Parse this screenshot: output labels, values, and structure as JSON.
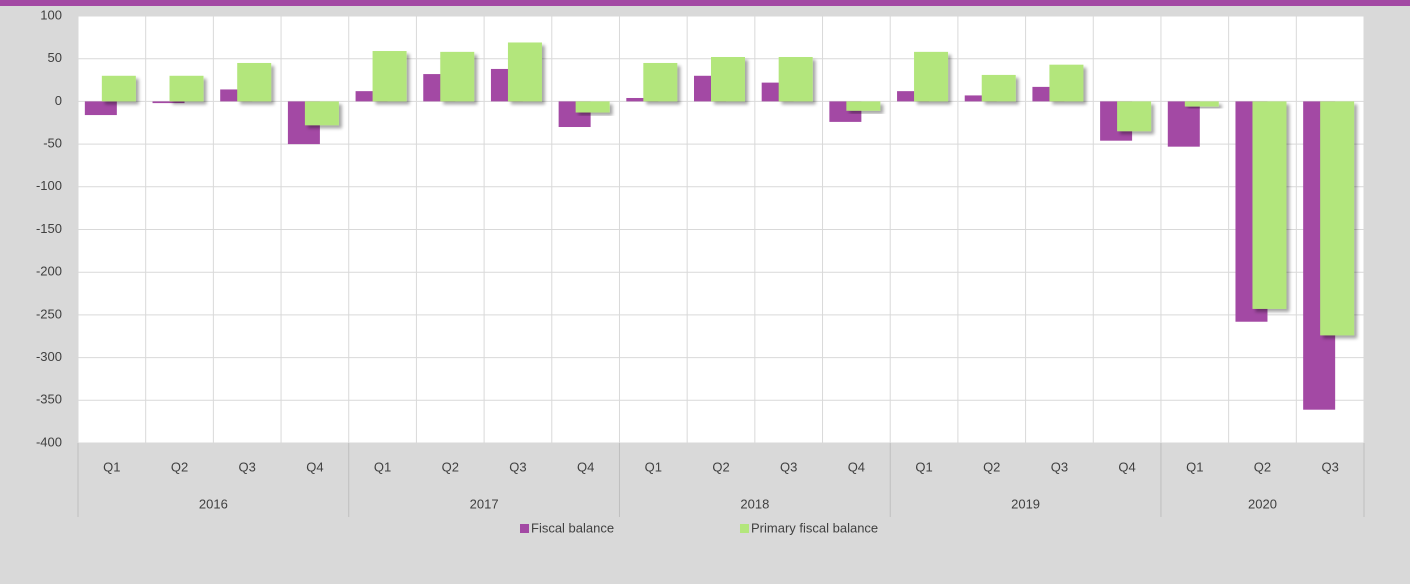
{
  "chart_data": {
    "type": "bar",
    "groups": [
      {
        "name": "2016",
        "categories": [
          "Q1",
          "Q2",
          "Q3",
          "Q4"
        ]
      },
      {
        "name": "2017",
        "categories": [
          "Q1",
          "Q2",
          "Q3",
          "Q4"
        ]
      },
      {
        "name": "2018",
        "categories": [
          "Q1",
          "Q2",
          "Q3",
          "Q4"
        ]
      },
      {
        "name": "2019",
        "categories": [
          "Q1",
          "Q2",
          "Q3",
          "Q4"
        ]
      },
      {
        "name": "2020",
        "categories": [
          "Q1",
          "Q2",
          "Q3"
        ]
      }
    ],
    "series": [
      {
        "name": "Fiscal balance",
        "color": "#a349a4",
        "values": [
          -16,
          -2,
          14,
          -50,
          12,
          32,
          38,
          -30,
          4,
          30,
          22,
          -24,
          12,
          7,
          17,
          -46,
          -53,
          -258,
          -361
        ]
      },
      {
        "name": "Primary fiscal balance",
        "color": "#b3e67c",
        "values": [
          30,
          30,
          45,
          -28,
          59,
          58,
          69,
          -13,
          45,
          52,
          52,
          -11,
          58,
          31,
          43,
          -35,
          -6,
          -243,
          -274
        ]
      }
    ],
    "ylim": [
      -400,
      100
    ],
    "yticks": [
      -400,
      -350,
      -300,
      -250,
      -200,
      -150,
      -100,
      -50,
      0,
      50,
      100
    ],
    "grid": true,
    "legend": "bottom"
  }
}
